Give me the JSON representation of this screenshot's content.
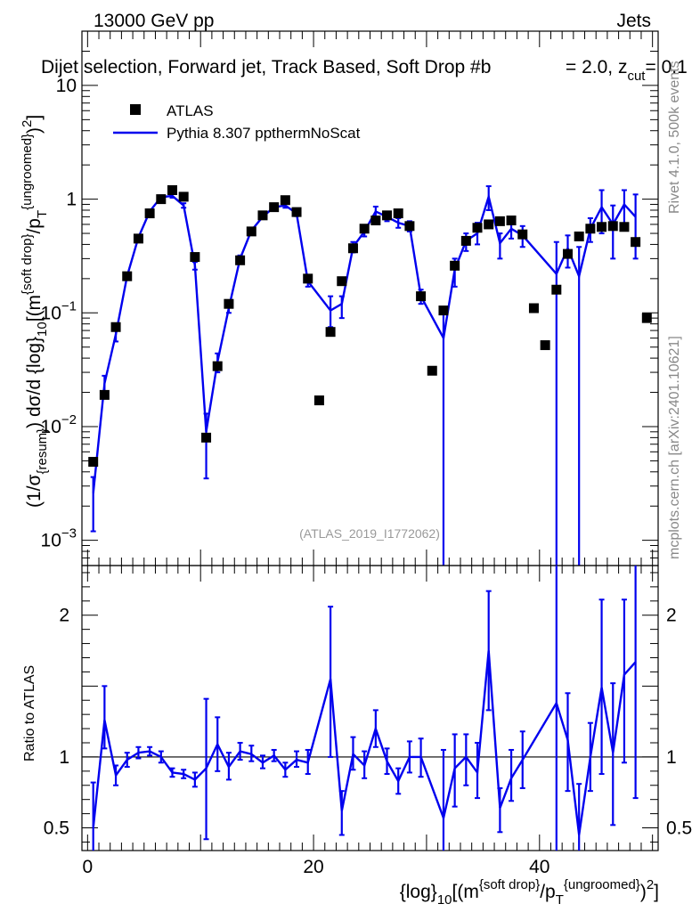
{
  "header": {
    "beam": "13000 GeV pp",
    "category": "Jets",
    "title": "Dijet selection, Forward jet, Track Based, Soft Drop #b",
    "title_tail": "= 2.0, z",
    "title_tail_sub": "cut",
    "title_tail_end": "= 0.1",
    "rivet": "Rivet 4.1.0,  500k events",
    "mcplots": "mcplots.cern.ch [arXiv:2401.10621]"
  },
  "colors": {
    "mc": "#0000ee",
    "data": "#000000"
  },
  "chart_data": [
    {
      "type": "scatter",
      "name": "main",
      "scale": "log",
      "analysis_label": "(ATLAS_2019_I1772062)",
      "ylabel": "(1/σ{resum}) dσ/d {log}10[(m{soft drop}/pT{ungroomed})2]",
      "xlim": [
        -0.5,
        50.5
      ],
      "ylim": [
        0.0006,
        30
      ],
      "y_ticks": [
        {
          "v": 0.001,
          "base": "10",
          "exp": "−3"
        },
        {
          "v": 0.01,
          "base": "10",
          "exp": "−2"
        },
        {
          "v": 0.1,
          "base": "10",
          "exp": "−1"
        },
        {
          "v": 1,
          "base": "1",
          "exp": ""
        },
        {
          "v": 10,
          "base": "10",
          "exp": ""
        }
      ],
      "legend": [
        {
          "label": "ATLAS",
          "kind": "marker"
        },
        {
          "label": "Pythia 8.307 ppthermNoScat",
          "kind": "line"
        }
      ],
      "data_x": [
        0.5,
        1.5,
        2.5,
        3.5,
        4.5,
        5.5,
        6.5,
        7.5,
        8.5,
        9.5,
        10.5,
        11.5,
        12.5,
        13.5,
        14.5,
        15.5,
        16.5,
        17.5,
        18.5,
        19.5,
        20.5,
        21.5,
        22.5,
        23.5,
        24.5,
        25.5,
        26.5,
        27.5,
        28.5,
        29.5,
        30.5,
        31.5,
        32.5,
        33.5,
        34.5,
        35.5,
        36.5,
        37.5,
        38.5,
        39.5,
        40.5,
        41.5,
        42.5,
        43.5,
        44.5,
        45.5,
        46.5,
        47.5,
        48.5,
        49.5
      ],
      "data_y": [
        0.0049,
        0.019,
        0.075,
        0.21,
        0.45,
        0.75,
        1.0,
        1.2,
        1.05,
        0.31,
        0.008,
        0.034,
        0.12,
        0.29,
        0.52,
        0.72,
        0.85,
        0.98,
        0.77,
        0.2,
        0.017,
        0.068,
        0.19,
        0.37,
        0.55,
        0.65,
        0.72,
        0.75,
        0.58,
        0.14,
        0.031,
        0.105,
        0.26,
        0.43,
        0.56,
        0.6,
        0.64,
        0.65,
        0.49,
        0.11,
        0.052,
        0.16,
        0.33,
        0.47,
        0.55,
        0.57,
        0.58,
        0.57,
        0.42,
        0.09
      ],
      "mc_points": [
        {
          "x": 0.5,
          "y": 0.0026,
          "lo": 0.0012,
          "hi": 0.0036
        },
        {
          "x": 1.5,
          "y": 0.024,
          "lo": 0.02,
          "hi": 0.028
        },
        {
          "x": 2.5,
          "y": 0.065,
          "lo": 0.056,
          "hi": 0.074
        },
        {
          "x": 3.5,
          "y": 0.21,
          "lo": 0.195,
          "hi": 0.225
        },
        {
          "x": 4.5,
          "y": 0.46,
          "lo": 0.44,
          "hi": 0.48
        },
        {
          "x": 5.5,
          "y": 0.78,
          "lo": 0.75,
          "hi": 0.81
        },
        {
          "x": 6.5,
          "y": 1.04,
          "lo": 1.0,
          "hi": 1.08
        },
        {
          "x": 7.5,
          "y": 1.07,
          "lo": 1.03,
          "hi": 1.11
        },
        {
          "x": 8.5,
          "y": 0.88,
          "lo": 0.84,
          "hi": 0.92
        },
        {
          "x": 9.5,
          "y": 0.26,
          "lo": 0.24,
          "hi": 0.28
        },
        {
          "x": 10.5,
          "y": 0.009,
          "lo": 0.0035,
          "hi": 0.013
        },
        {
          "x": 11.5,
          "y": 0.037,
          "lo": 0.03,
          "hi": 0.044
        },
        {
          "x": 12.5,
          "y": 0.11,
          "lo": 0.1,
          "hi": 0.125
        },
        {
          "x": 13.5,
          "y": 0.3,
          "lo": 0.285,
          "hi": 0.32
        },
        {
          "x": 14.5,
          "y": 0.53,
          "lo": 0.51,
          "hi": 0.56
        },
        {
          "x": 15.5,
          "y": 0.7,
          "lo": 0.67,
          "hi": 0.73
        },
        {
          "x": 16.5,
          "y": 0.85,
          "lo": 0.82,
          "hi": 0.88
        },
        {
          "x": 17.5,
          "y": 0.88,
          "lo": 0.84,
          "hi": 0.92
        },
        {
          "x": 18.5,
          "y": 0.75,
          "lo": 0.71,
          "hi": 0.79
        },
        {
          "x": 19.5,
          "y": 0.19,
          "lo": 0.17,
          "hi": 0.21
        },
        {
          "x": 21.5,
          "y": 0.105,
          "lo": 0.075,
          "hi": 0.14
        },
        {
          "x": 22.5,
          "y": 0.12,
          "lo": 0.09,
          "hi": 0.14
        },
        {
          "x": 23.5,
          "y": 0.38,
          "lo": 0.34,
          "hi": 0.42
        },
        {
          "x": 24.5,
          "y": 0.52,
          "lo": 0.47,
          "hi": 0.57
        },
        {
          "x": 25.5,
          "y": 0.78,
          "lo": 0.7,
          "hi": 0.86
        },
        {
          "x": 26.5,
          "y": 0.7,
          "lo": 0.64,
          "hi": 0.76
        },
        {
          "x": 27.5,
          "y": 0.62,
          "lo": 0.56,
          "hi": 0.68
        },
        {
          "x": 28.5,
          "y": 0.58,
          "lo": 0.52,
          "hi": 0.64
        },
        {
          "x": 29.5,
          "y": 0.14,
          "lo": 0.12,
          "hi": 0.16
        },
        {
          "x": 31.5,
          "y": 0.06,
          "lo": 0.0001,
          "hi": 0.11
        },
        {
          "x": 32.5,
          "y": 0.24,
          "lo": 0.17,
          "hi": 0.3
        },
        {
          "x": 33.5,
          "y": 0.43,
          "lo": 0.35,
          "hi": 0.5
        },
        {
          "x": 34.5,
          "y": 0.5,
          "lo": 0.4,
          "hi": 0.62
        },
        {
          "x": 35.5,
          "y": 1.05,
          "lo": 0.8,
          "hi": 1.3
        },
        {
          "x": 36.5,
          "y": 0.41,
          "lo": 0.3,
          "hi": 0.5
        },
        {
          "x": 37.5,
          "y": 0.55,
          "lo": 0.45,
          "hi": 0.68
        },
        {
          "x": 38.5,
          "y": 0.48,
          "lo": 0.38,
          "hi": 0.58
        },
        {
          "x": 41.5,
          "y": 0.22,
          "lo": 0.0001,
          "hi": 0.42
        },
        {
          "x": 42.5,
          "y": 0.37,
          "lo": 0.25,
          "hi": 0.48
        },
        {
          "x": 43.5,
          "y": 0.21,
          "lo": 0.0001,
          "hi": 0.38
        },
        {
          "x": 44.5,
          "y": 0.55,
          "lo": 0.42,
          "hi": 0.68
        },
        {
          "x": 45.5,
          "y": 0.85,
          "lo": 0.5,
          "hi": 1.2
        },
        {
          "x": 46.5,
          "y": 0.6,
          "lo": 0.3,
          "hi": 0.88
        },
        {
          "x": 47.5,
          "y": 0.9,
          "lo": 0.55,
          "hi": 1.2
        },
        {
          "x": 48.5,
          "y": 0.7,
          "lo": 0.3,
          "hi": 1.1
        }
      ]
    },
    {
      "type": "line",
      "name": "ratio",
      "ylabel": "Ratio to ATLAS",
      "xlabel": "{log}10[(m{soft drop}/pT{ungroomed})2]",
      "xlim": [
        -0.5,
        50.5
      ],
      "ylim": [
        0.34,
        2.35
      ],
      "y_ticks": [
        0.5,
        1,
        2
      ],
      "x_ticks": [
        0,
        20,
        40
      ],
      "reference": 1,
      "points": [
        {
          "x": 0.5,
          "y": 0.5,
          "lo": 0.3,
          "hi": 0.82
        },
        {
          "x": 1.5,
          "y": 1.26,
          "lo": 1.06,
          "hi": 1.5
        },
        {
          "x": 2.5,
          "y": 0.87,
          "lo": 0.8,
          "hi": 0.94
        },
        {
          "x": 3.5,
          "y": 0.98,
          "lo": 0.93,
          "hi": 1.03
        },
        {
          "x": 4.5,
          "y": 1.03,
          "lo": 0.99,
          "hi": 1.07
        },
        {
          "x": 5.5,
          "y": 1.04,
          "lo": 1.01,
          "hi": 1.07
        },
        {
          "x": 6.5,
          "y": 1.0,
          "lo": 0.96,
          "hi": 1.04
        },
        {
          "x": 7.5,
          "y": 0.89,
          "lo": 0.86,
          "hi": 0.92
        },
        {
          "x": 8.5,
          "y": 0.88,
          "lo": 0.85,
          "hi": 0.91
        },
        {
          "x": 9.5,
          "y": 0.84,
          "lo": 0.79,
          "hi": 0.89
        },
        {
          "x": 10.5,
          "y": 0.92,
          "lo": 0.42,
          "hi": 1.41
        },
        {
          "x": 11.5,
          "y": 1.09,
          "lo": 0.9,
          "hi": 1.28
        },
        {
          "x": 12.5,
          "y": 0.93,
          "lo": 0.84,
          "hi": 1.03
        },
        {
          "x": 13.5,
          "y": 1.04,
          "lo": 0.98,
          "hi": 1.1
        },
        {
          "x": 14.5,
          "y": 1.02,
          "lo": 0.97,
          "hi": 1.08
        },
        {
          "x": 15.5,
          "y": 0.96,
          "lo": 0.92,
          "hi": 1.01
        },
        {
          "x": 16.5,
          "y": 1.01,
          "lo": 0.97,
          "hi": 1.05
        },
        {
          "x": 17.5,
          "y": 0.91,
          "lo": 0.86,
          "hi": 0.96
        },
        {
          "x": 18.5,
          "y": 0.98,
          "lo": 0.93,
          "hi": 1.04
        },
        {
          "x": 19.5,
          "y": 0.96,
          "lo": 0.88,
          "hi": 1.05
        },
        {
          "x": 21.5,
          "y": 1.55,
          "lo": 1.0,
          "hi": 2.06
        },
        {
          "x": 22.5,
          "y": 0.62,
          "lo": 0.45,
          "hi": 0.76
        },
        {
          "x": 23.5,
          "y": 1.02,
          "lo": 0.91,
          "hi": 1.14
        },
        {
          "x": 24.5,
          "y": 0.94,
          "lo": 0.85,
          "hi": 1.04
        },
        {
          "x": 25.5,
          "y": 1.2,
          "lo": 1.07,
          "hi": 1.33
        },
        {
          "x": 26.5,
          "y": 0.97,
          "lo": 0.88,
          "hi": 1.06
        },
        {
          "x": 27.5,
          "y": 0.83,
          "lo": 0.74,
          "hi": 0.92
        },
        {
          "x": 28.5,
          "y": 1.0,
          "lo": 0.89,
          "hi": 1.11
        },
        {
          "x": 29.5,
          "y": 1.0,
          "lo": 0.86,
          "hi": 1.13
        },
        {
          "x": 31.5,
          "y": 0.57,
          "lo": 0.0,
          "hi": 1.05
        },
        {
          "x": 32.5,
          "y": 0.92,
          "lo": 0.65,
          "hi": 1.16
        },
        {
          "x": 33.5,
          "y": 1.0,
          "lo": 0.8,
          "hi": 1.16
        },
        {
          "x": 34.5,
          "y": 0.89,
          "lo": 0.71,
          "hi": 1.1
        },
        {
          "x": 35.5,
          "y": 1.75,
          "lo": 1.33,
          "hi": 2.17
        },
        {
          "x": 36.5,
          "y": 0.64,
          "lo": 0.47,
          "hi": 0.78
        },
        {
          "x": 37.5,
          "y": 0.85,
          "lo": 0.69,
          "hi": 1.05
        },
        {
          "x": 38.5,
          "y": 0.98,
          "lo": 0.78,
          "hi": 1.18
        },
        {
          "x": 41.5,
          "y": 1.38,
          "lo": 0.0,
          "hi": 2.62
        },
        {
          "x": 42.5,
          "y": 1.12,
          "lo": 0.76,
          "hi": 1.45
        },
        {
          "x": 43.5,
          "y": 0.45,
          "lo": 0.0,
          "hi": 0.81
        },
        {
          "x": 44.5,
          "y": 1.0,
          "lo": 0.76,
          "hi": 1.24
        },
        {
          "x": 45.5,
          "y": 1.49,
          "lo": 0.88,
          "hi": 2.11
        },
        {
          "x": 46.5,
          "y": 1.03,
          "lo": 0.52,
          "hi": 1.52
        },
        {
          "x": 47.5,
          "y": 1.58,
          "lo": 0.96,
          "hi": 2.11
        },
        {
          "x": 48.5,
          "y": 1.67,
          "lo": 0.71,
          "hi": 2.62
        }
      ]
    }
  ]
}
